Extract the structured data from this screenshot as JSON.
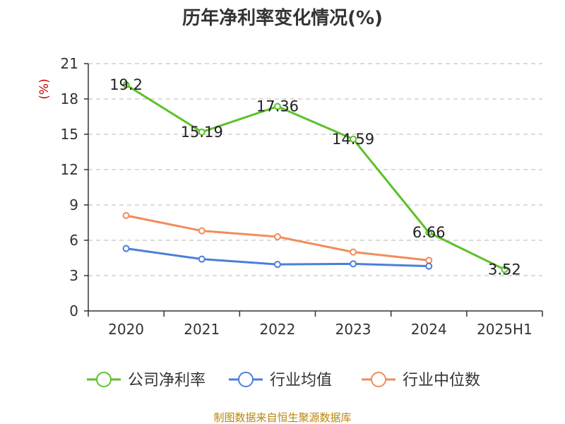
{
  "chart_data": {
    "type": "line",
    "title": "历年净利率变化情况(%)",
    "y_unit": "(%)",
    "categories": [
      "2020",
      "2021",
      "2022",
      "2023",
      "2024",
      "2025H1"
    ],
    "yticks": [
      "0",
      "3",
      "6",
      "9",
      "12",
      "15",
      "18",
      "21"
    ],
    "ylim": [
      0,
      21
    ],
    "grid": true,
    "legend_position": "bottom",
    "series": [
      {
        "name": "公司净利率",
        "color": "#5cc12a",
        "values": [
          19.2,
          15.19,
          17.36,
          14.59,
          6.66,
          3.52
        ],
        "labels": [
          "19.2",
          "15.19",
          "17.36",
          "14.59",
          "6.66",
          "3.52"
        ]
      },
      {
        "name": "行业均值",
        "color": "#4a7fdb",
        "values": [
          5.3,
          4.4,
          3.95,
          4.0,
          3.8,
          null
        ]
      },
      {
        "name": "行业中位数",
        "color": "#f28c5a",
        "values": [
          8.1,
          6.8,
          6.3,
          5.0,
          4.3,
          null
        ]
      }
    ],
    "source": "制图数据来自恒生聚源数据库"
  }
}
